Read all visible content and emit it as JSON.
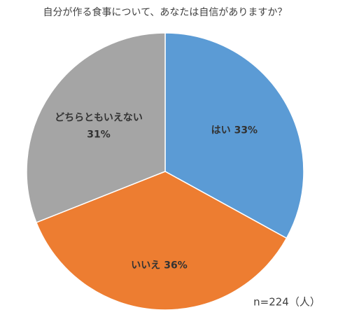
{
  "chart_data": {
    "type": "pie",
    "title": "自分が作る食事について、あなたは自信がありますか？",
    "categories": [
      "はい",
      "いいえ",
      "どちらともいえない"
    ],
    "values": [
      33,
      36,
      31
    ],
    "value_labels": [
      "33%",
      "36%",
      "31%"
    ],
    "colors": [
      "#5b9bd5",
      "#ed7d31",
      "#a5a5a5"
    ],
    "annotation": "n=224（人）"
  }
}
